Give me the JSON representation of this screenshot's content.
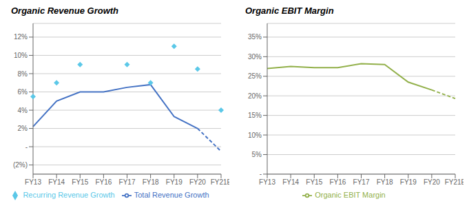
{
  "chart_data": [
    {
      "type": "line",
      "title": "Organic Revenue Growth",
      "categories": [
        "FY13",
        "FY14",
        "FY15",
        "FY16",
        "FY17",
        "FY18",
        "FY19",
        "FY20",
        "FY21E"
      ],
      "series": [
        {
          "name": "Recurring Revenue Growth",
          "type": "scatter",
          "marker": "diamond",
          "color": "#5bc8e8",
          "values": [
            0.055,
            0.07,
            0.09,
            null,
            0.09,
            0.07,
            0.11,
            0.085,
            0.04
          ]
        },
        {
          "name": "Total Revenue Growth",
          "type": "line",
          "color": "#4472c4",
          "values": [
            0.022,
            0.05,
            0.06,
            0.06,
            0.065,
            0.068,
            0.033,
            0.02,
            -0.005
          ]
        }
      ],
      "ylim": [
        -0.03,
        0.135
      ],
      "yticks": [
        {
          "value": -0.02,
          "label": "(2%)"
        },
        {
          "value": 0.0,
          "label": "-"
        },
        {
          "value": 0.02,
          "label": "2%"
        },
        {
          "value": 0.04,
          "label": "4%"
        },
        {
          "value": 0.06,
          "label": "6%"
        },
        {
          "value": 0.08,
          "label": "8%"
        },
        {
          "value": 0.1,
          "label": "10%"
        },
        {
          "value": 0.12,
          "label": "12%"
        }
      ],
      "grid": true,
      "legend": "bottom"
    },
    {
      "type": "line",
      "title": "Organic EBIT Margin",
      "categories": [
        "FY13",
        "FY14",
        "FY15",
        "FY16",
        "FY17",
        "FY18",
        "FY19",
        "FY20",
        "FY21E"
      ],
      "series": [
        {
          "name": "Organic EBIT Margin",
          "type": "line",
          "color": "#92b04a",
          "values": [
            0.27,
            0.275,
            0.272,
            0.272,
            0.282,
            0.28,
            0.235,
            0.215,
            0.193
          ]
        }
      ],
      "ylim": [
        0.0,
        0.385
      ],
      "yticks": [
        {
          "value": 0.0,
          "label": "-"
        },
        {
          "value": 0.05,
          "label": "5%"
        },
        {
          "value": 0.1,
          "label": "10%"
        },
        {
          "value": 0.15,
          "label": "15%"
        },
        {
          "value": 0.2,
          "label": "20%"
        },
        {
          "value": 0.25,
          "label": "25%"
        },
        {
          "value": 0.3,
          "label": "30%"
        },
        {
          "value": 0.35,
          "label": "35%"
        }
      ],
      "grid": true,
      "legend": "bottom"
    }
  ]
}
